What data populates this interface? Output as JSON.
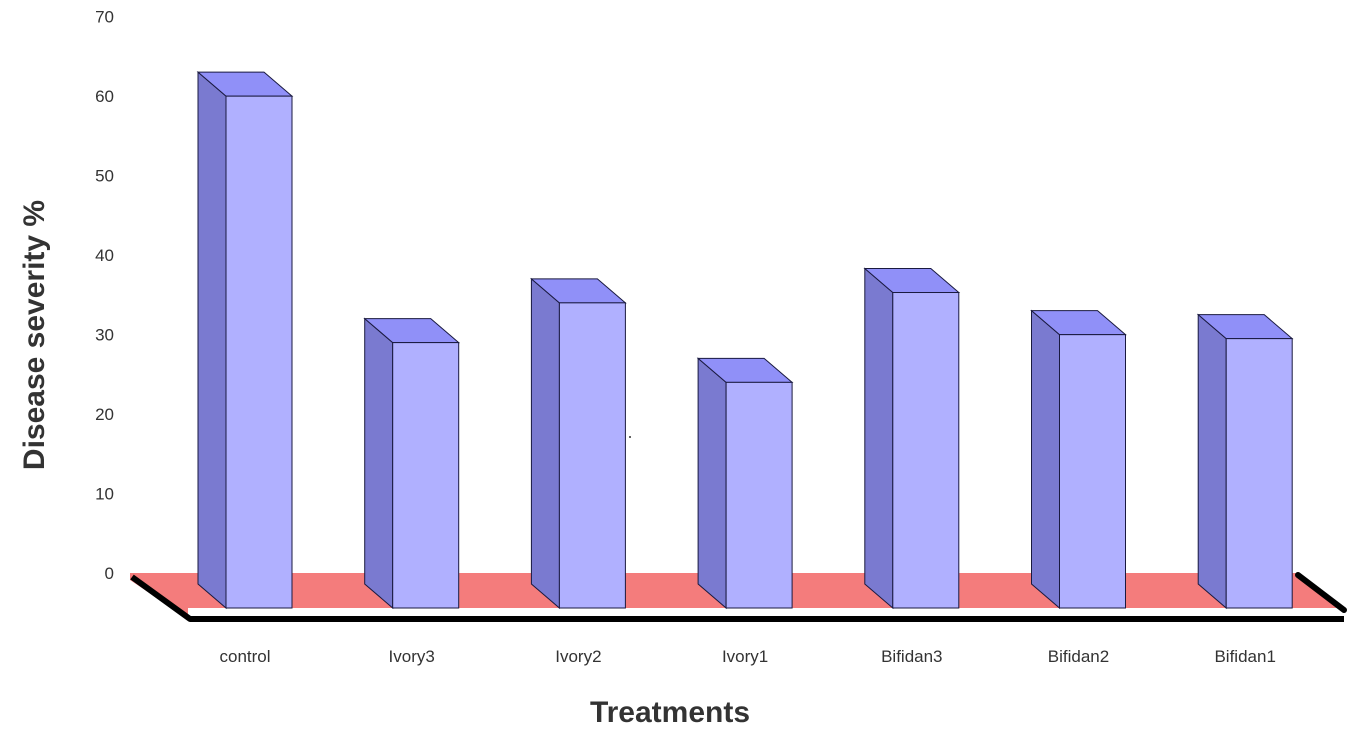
{
  "chart_data": {
    "type": "bar",
    "style": "3d",
    "title": "",
    "xlabel": "Treatments",
    "ylabel": "Disease severity %",
    "categories": [
      "control",
      "Ivory3",
      "Ivory2",
      "Ivory1",
      "Bifidan3",
      "Bifidan2",
      "Bifidan1"
    ],
    "series": [
      {
        "values": [
          63,
          32,
          37,
          27,
          38.3,
          33,
          32.5
        ]
      }
    ],
    "ylim": [
      0,
      70
    ],
    "yticks": [
      0,
      10,
      20,
      30,
      40,
      50,
      60,
      70
    ],
    "grid": false,
    "legend": "none",
    "colors": {
      "bar_front": "#b0b0ff",
      "bar_top": "#9090f8",
      "bar_side": "#7a7ad0",
      "bar_outline": "#1a1a40",
      "floor": "#f47c7c",
      "floor_edge": "#000000"
    }
  }
}
